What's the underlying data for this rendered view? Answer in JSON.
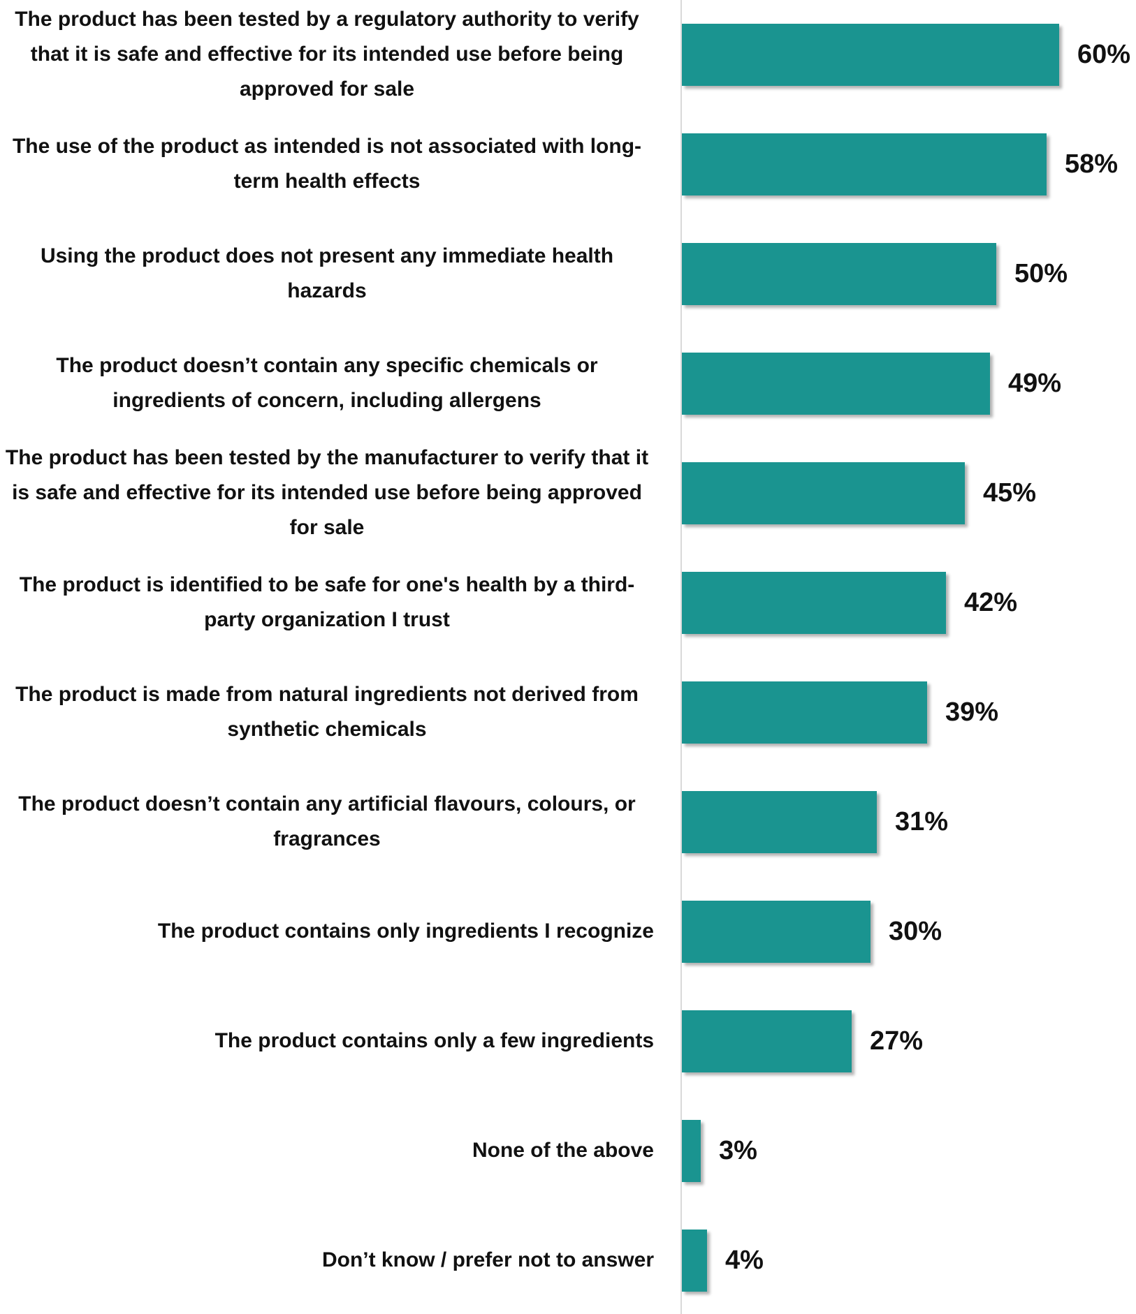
{
  "chart_data": {
    "type": "bar",
    "orientation": "horizontal",
    "color": "#1a9490",
    "categories": [
      "The product has been tested by a regulatory authority to verify that it is safe and effective for its intended use before being approved for sale",
      "The use of the product as intended is not associated with long-term health effects",
      "Using the product does not present any immediate health hazards",
      "The product doesn’t contain any specific chemicals or ingredients of concern, including allergens",
      "The product has been tested by the manufacturer to verify that it is safe and effective for its intended use before being approved for sale",
      "The product is identified to be safe for one's health by a third-party organization I trust",
      "The product is made from natural ingredients not derived from synthetic chemicals",
      "The product doesn’t contain any artificial flavours, colours, or fragrances",
      "The product contains only ingredients I recognize",
      "The product contains only a few ingredients",
      "None of the above",
      "Don’t know / prefer not to answer"
    ],
    "values": [
      60,
      58,
      50,
      49,
      45,
      42,
      39,
      31,
      30,
      27,
      3,
      4
    ],
    "value_labels": [
      "60%",
      "58%",
      "50%",
      "49%",
      "45%",
      "42%",
      "39%",
      "31%",
      "30%",
      "27%",
      "3%",
      "4%"
    ]
  }
}
